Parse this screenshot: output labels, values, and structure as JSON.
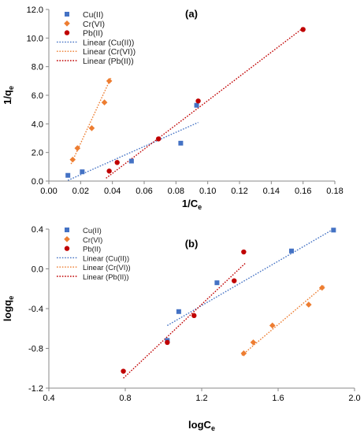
{
  "chart_data": [
    {
      "type": "scatter",
      "panel_label": "(a)",
      "xlabel": "1/C",
      "xlabel_sub": "e",
      "ylabel": "1/q",
      "ylabel_sub": "e",
      "xlim": [
        0,
        0.18
      ],
      "ylim": [
        0,
        12
      ],
      "x_ticks": [
        "0.00",
        "0.02",
        "0.04",
        "0.06",
        "0.08",
        "0.10",
        "0.12",
        "0.14",
        "0.16",
        "0.18"
      ],
      "y_ticks": [
        "0.0",
        "2.0",
        "4.0",
        "6.0",
        "8.0",
        "10.0",
        "12.0"
      ],
      "grid": false,
      "legend_position": "top-left",
      "series": [
        {
          "name": "Cu(II)",
          "color": "#4472C4",
          "marker": "square",
          "x": [
            0.012,
            0.021,
            0.052,
            0.083,
            0.093
          ],
          "y": [
            0.4,
            0.65,
            1.4,
            2.65,
            5.3
          ]
        },
        {
          "name": "Cr(VI)",
          "color": "#ED7D31",
          "marker": "diamond",
          "x": [
            0.015,
            0.018,
            0.027,
            0.035,
            0.038
          ],
          "y": [
            1.5,
            2.3,
            3.7,
            5.5,
            7.0
          ]
        },
        {
          "name": "Pb(II)",
          "color": "#C00000",
          "marker": "circle",
          "x": [
            0.038,
            0.043,
            0.069,
            0.094,
            0.16
          ],
          "y": [
            0.7,
            1.3,
            2.95,
            5.6,
            10.6
          ]
        }
      ],
      "trendlines": [
        {
          "name": "Linear (Cu(II))",
          "color": "#4472C4",
          "x": [
            0.012,
            0.094
          ],
          "y": [
            0.05,
            4.1
          ]
        },
        {
          "name": "Linear (Cr(VI))",
          "color": "#ED7D31",
          "x": [
            0.014,
            0.039
          ],
          "y": [
            1.2,
            7.2
          ]
        },
        {
          "name": "Linear (Pb(II))",
          "color": "#C00000",
          "x": [
            0.036,
            0.16
          ],
          "y": [
            0.2,
            10.7
          ]
        }
      ]
    },
    {
      "type": "scatter",
      "panel_label": "(b)",
      "xlabel": "logC",
      "xlabel_sub": "e",
      "ylabel": "logq",
      "ylabel_sub": "e",
      "xlim": [
        0.4,
        2.0
      ],
      "ylim": [
        -1.2,
        0.4
      ],
      "x_ticks": [
        "0.4",
        "0.8",
        "1.2",
        "1.6",
        "2.0"
      ],
      "y_ticks": [
        "-1.2",
        "-0.8",
        "-0.4",
        "0.0",
        "0.4"
      ],
      "grid": false,
      "legend_position": "top-left",
      "series": [
        {
          "name": "Cu(II)",
          "color": "#4472C4",
          "marker": "square",
          "x": [
            1.02,
            1.08,
            1.28,
            1.67,
            1.89
          ],
          "y": [
            -0.72,
            -0.43,
            -0.14,
            0.18,
            0.39
          ]
        },
        {
          "name": "Cr(VI)",
          "color": "#ED7D31",
          "marker": "diamond",
          "x": [
            1.42,
            1.47,
            1.57,
            1.76,
            1.83
          ],
          "y": [
            -0.85,
            -0.74,
            -0.57,
            -0.36,
            -0.19
          ]
        },
        {
          "name": "Pb(II)",
          "color": "#C00000",
          "marker": "circle",
          "x": [
            0.79,
            1.02,
            1.16,
            1.37,
            1.42
          ],
          "y": [
            -1.03,
            -0.74,
            -0.47,
            -0.12,
            0.17
          ]
        }
      ],
      "trendlines": [
        {
          "name": "Linear (Cu(II))",
          "color": "#4472C4",
          "x": [
            1.02,
            1.89
          ],
          "y": [
            -0.57,
            0.4
          ]
        },
        {
          "name": "Linear (Cr(VI))",
          "color": "#ED7D31",
          "x": [
            1.41,
            1.84
          ],
          "y": [
            -0.87,
            -0.17
          ]
        },
        {
          "name": "Linear (Pb(II))",
          "color": "#C00000",
          "x": [
            0.79,
            1.43
          ],
          "y": [
            -1.1,
            0.06
          ]
        }
      ]
    }
  ]
}
